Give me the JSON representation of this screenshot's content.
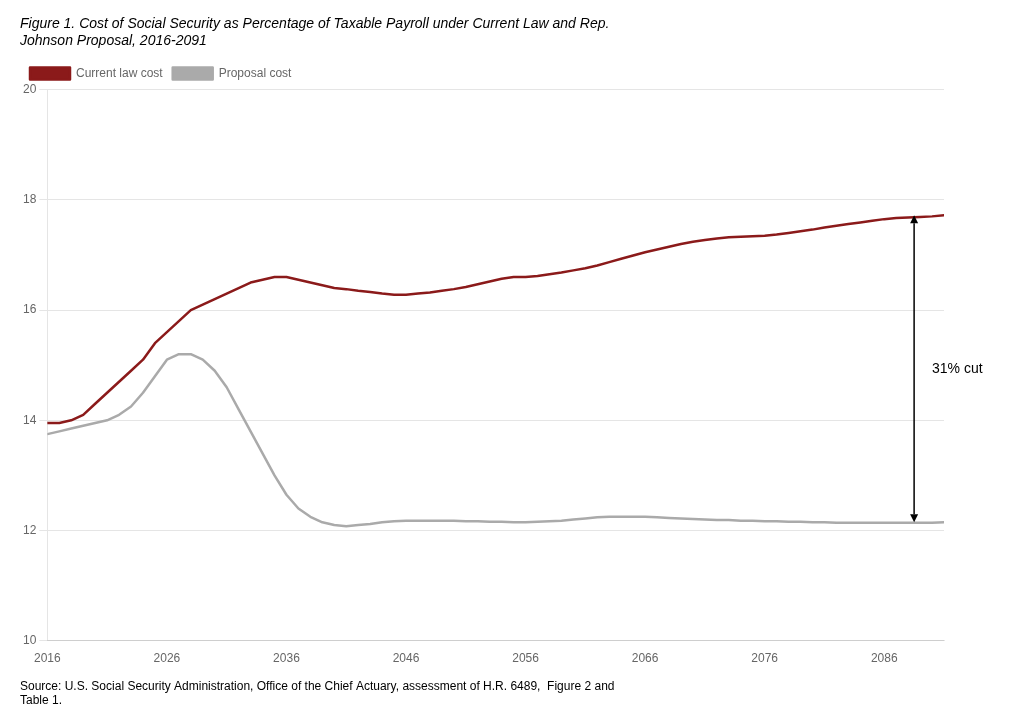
{
  "chart_data": {
    "type": "line",
    "title": [
      "Figure 1. Cost of Social Security as Percentage of Taxable Payroll under Current Law and Rep.",
      "Johnson Proposal, 2016-2091"
    ],
    "source": [
      "Source: U.S. Social Security Administration, Office of the Chief Actuary, assessment of H.R. 6489,  Figure 2 and",
      "Table 1."
    ],
    "x": [
      2016,
      2017,
      2018,
      2019,
      2020,
      2021,
      2022,
      2023,
      2024,
      2025,
      2026,
      2027,
      2028,
      2029,
      2030,
      2031,
      2032,
      2033,
      2034,
      2035,
      2036,
      2037,
      2038,
      2039,
      2040,
      2041,
      2042,
      2043,
      2044,
      2045,
      2046,
      2047,
      2048,
      2049,
      2050,
      2051,
      2052,
      2053,
      2054,
      2055,
      2056,
      2057,
      2058,
      2059,
      2060,
      2061,
      2062,
      2063,
      2064,
      2065,
      2066,
      2067,
      2068,
      2069,
      2070,
      2071,
      2072,
      2073,
      2074,
      2075,
      2076,
      2077,
      2078,
      2079,
      2080,
      2081,
      2082,
      2083,
      2084,
      2085,
      2086,
      2087,
      2088,
      2089,
      2090,
      2091
    ],
    "series": [
      {
        "name": "Current law cost",
        "color": "#8B1A1A",
        "values": [
          13.95,
          13.95,
          14.0,
          14.1,
          14.3,
          14.5,
          14.7,
          14.9,
          15.1,
          15.4,
          15.6,
          15.8,
          16.0,
          16.1,
          16.2,
          16.3,
          16.4,
          16.5,
          16.55,
          16.6,
          16.6,
          16.55,
          16.5,
          16.45,
          16.4,
          16.38,
          16.35,
          16.33,
          16.3,
          16.28,
          16.28,
          16.3,
          16.32,
          16.35,
          16.38,
          16.42,
          16.47,
          16.52,
          16.57,
          16.6,
          16.6,
          16.62,
          16.65,
          16.68,
          16.72,
          16.76,
          16.81,
          16.87,
          16.93,
          16.99,
          17.05,
          17.1,
          17.15,
          17.2,
          17.24,
          17.27,
          17.3,
          17.32,
          17.33,
          17.34,
          17.35,
          17.37,
          17.4,
          17.43,
          17.46,
          17.5,
          17.53,
          17.56,
          17.59,
          17.62,
          17.65,
          17.67,
          17.68,
          17.69,
          17.7,
          17.72
        ]
      },
      {
        "name": "Proposal cost",
        "color": "#AAAAAA",
        "values": [
          13.75,
          13.8,
          13.85,
          13.9,
          13.95,
          14.0,
          14.1,
          14.25,
          14.5,
          14.8,
          15.1,
          15.2,
          15.2,
          15.1,
          14.9,
          14.6,
          14.2,
          13.8,
          13.4,
          13.0,
          12.65,
          12.4,
          12.25,
          12.15,
          12.1,
          12.08,
          12.1,
          12.12,
          12.15,
          12.17,
          12.18,
          12.18,
          12.18,
          12.18,
          12.18,
          12.17,
          12.17,
          12.16,
          12.16,
          12.15,
          12.15,
          12.16,
          12.17,
          12.18,
          12.2,
          12.22,
          12.24,
          12.25,
          12.25,
          12.25,
          12.25,
          12.24,
          12.23,
          12.22,
          12.21,
          12.2,
          12.19,
          12.19,
          12.18,
          12.18,
          12.17,
          12.17,
          12.16,
          12.16,
          12.15,
          12.15,
          12.14,
          12.14,
          12.14,
          12.14,
          12.14,
          12.14,
          12.14,
          12.14,
          12.14,
          12.15
        ]
      }
    ],
    "xlim": [
      2016,
      2091
    ],
    "xticks": [
      2016,
      2026,
      2036,
      2046,
      2056,
      2066,
      2076,
      2086
    ],
    "ylim": [
      10,
      20
    ],
    "yticks": [
      10,
      12,
      14,
      16,
      18,
      20
    ],
    "grid": "y",
    "legend": "upper left",
    "annotations": [
      {
        "type": "arrow",
        "x": 2088.5,
        "y": [
          12.15,
          17.72
        ]
      },
      {
        "type": "text",
        "text": "31% cut",
        "x": 2090,
        "y": 14.935
      }
    ]
  }
}
